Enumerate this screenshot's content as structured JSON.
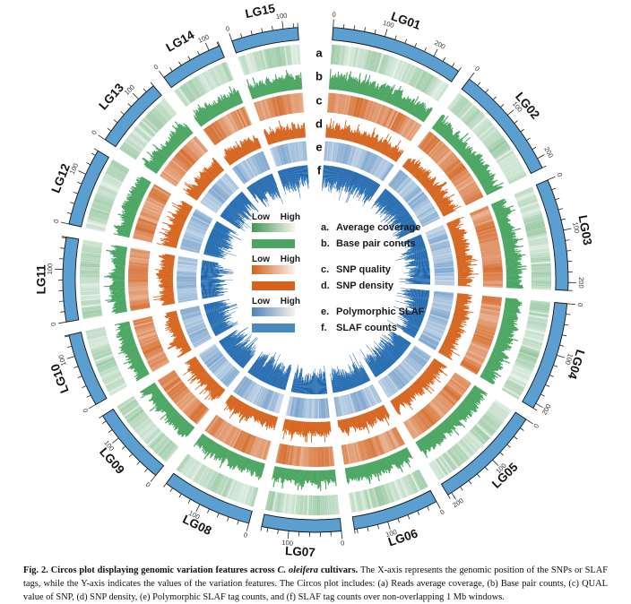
{
  "chart_data": {
    "type": "circos",
    "description": "Circos plot of genomic variation features across 15 linkage groups; values per non-overlapping 1 Mb window are dense and rendered procedurally",
    "ideogram_color": "#5b9fd0",
    "ideogram_outline": "#101418",
    "axis": {
      "minor_tick_interval": 20,
      "major_tick_interval": 100,
      "tick_label_values": [
        0,
        100,
        200
      ]
    },
    "linkage_groups": [
      {
        "name": "LG01",
        "length": 255
      },
      {
        "name": "LG02",
        "length": 220
      },
      {
        "name": "LG03",
        "length": 215
      },
      {
        "name": "LG04",
        "length": 210
      },
      {
        "name": "LG05",
        "length": 208
      },
      {
        "name": "LG06",
        "length": 165
      },
      {
        "name": "LG07",
        "length": 152
      },
      {
        "name": "LG08",
        "length": 175
      },
      {
        "name": "LG09",
        "length": 152
      },
      {
        "name": "LG10",
        "length": 142
      },
      {
        "name": "LG11",
        "length": 162
      },
      {
        "name": "LG12",
        "length": 150
      },
      {
        "name": "LG13",
        "length": 138
      },
      {
        "name": "LG14",
        "length": 122
      },
      {
        "name": "LG15",
        "length": 128
      }
    ],
    "tracks": [
      {
        "id": "a",
        "letter": "a.",
        "label": "Average coverage",
        "style": "heatmap",
        "scale": "low-high-gradient",
        "color": "#3e9651",
        "legend_swatch": "gradient"
      },
      {
        "id": "b",
        "letter": "b.",
        "label": "Base pair conuts",
        "style": "histogram",
        "orientation": "outward",
        "color": "#4ca663",
        "legend_swatch": "solid"
      },
      {
        "id": "c",
        "letter": "c.",
        "label": "SNP quality",
        "style": "heatmap",
        "scale": "low-high-gradient",
        "color": "#d2601c",
        "legend_swatch": "gradient"
      },
      {
        "id": "d",
        "letter": "d.",
        "label": "SNP density",
        "style": "histogram",
        "orientation": "outward",
        "color": "#d6631c",
        "legend_swatch": "solid"
      },
      {
        "id": "e",
        "letter": "e.",
        "label": "Polymorphic SLAF",
        "style": "heatmap",
        "scale": "low-high-gradient",
        "color": "#4a82b9",
        "legend_swatch": "gradient"
      },
      {
        "id": "f",
        "letter": "f.",
        "label": "SLAF counts",
        "style": "histogram",
        "orientation": "inward",
        "color": "#1d67ae",
        "legend_swatch": "solid",
        "legend_color": "#4a8abf"
      }
    ],
    "legend": {
      "low": "Low",
      "high": "High"
    }
  },
  "caption": {
    "label": "Fig. 2.",
    "title_pre": "Circos plot displaying genomic variation features across",
    "species": "C. oleifera",
    "title_post": "cultivars.",
    "body": "The X-axis represents the genomic position of the SNPs or SLAF tags, while the Y-axis indicates the values of the variation features. The Circos plot includes: (a) Reads average coverage, (b) Base pair counts, (c) QUAL value of SNP, (d) SNP density, (e) Polymorphic SLAF tag counts, and (f) SLAF tag counts over non-overlapping 1 Mb windows."
  }
}
